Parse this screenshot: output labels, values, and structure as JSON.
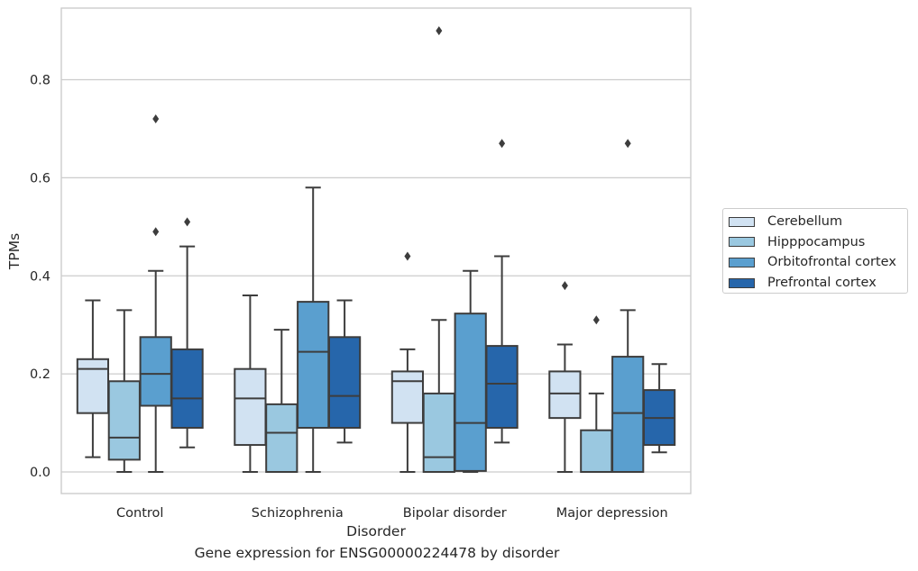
{
  "chart_data": {
    "type": "box",
    "title": "Gene expression for ENSG00000224478 by disorder",
    "xlabel": "Disorder",
    "ylabel": "TPMs",
    "ylim": [
      -0.045,
      0.945
    ],
    "yticks": [
      0.0,
      0.2,
      0.4,
      0.6,
      0.8
    ],
    "ytick_labels": [
      "0.0",
      "0.2",
      "0.4",
      "0.6",
      "0.8"
    ],
    "grid": "horizontal",
    "legend_position": "right",
    "categories": [
      "Control",
      "Schizophrenia",
      "Bipolar disorder",
      "Major depression"
    ],
    "series": [
      {
        "name": "Cerebellum",
        "color": "#d1e2f2",
        "boxes": [
          {
            "whislo": 0.03,
            "q1": 0.12,
            "med": 0.21,
            "q3": 0.23,
            "whishi": 0.35,
            "fliers": []
          },
          {
            "whislo": 0.0,
            "q1": 0.055,
            "med": 0.15,
            "q3": 0.21,
            "whishi": 0.36,
            "fliers": []
          },
          {
            "whislo": 0.0,
            "q1": 0.1,
            "med": 0.185,
            "q3": 0.205,
            "whishi": 0.25,
            "fliers": [
              0.44
            ]
          },
          {
            "whislo": 0.0,
            "q1": 0.11,
            "med": 0.16,
            "q3": 0.205,
            "whishi": 0.26,
            "fliers": [
              0.38
            ]
          }
        ]
      },
      {
        "name": "Hipppocampus",
        "color": "#9ac8e0",
        "boxes": [
          {
            "whislo": 0.0,
            "q1": 0.025,
            "med": 0.07,
            "q3": 0.185,
            "whishi": 0.33,
            "fliers": []
          },
          {
            "whislo": 0.0,
            "q1": 0.0,
            "med": 0.08,
            "q3": 0.138,
            "whishi": 0.29,
            "fliers": []
          },
          {
            "whislo": 0.0,
            "q1": 0.0,
            "med": 0.03,
            "q3": 0.16,
            "whishi": 0.31,
            "fliers": [
              0.9
            ]
          },
          {
            "whislo": 0.0,
            "q1": 0.0,
            "med": 0.0,
            "q3": 0.085,
            "whishi": 0.16,
            "fliers": [
              0.31
            ]
          }
        ]
      },
      {
        "name": "Orbitofrontal cortex",
        "color": "#5a9fcf",
        "boxes": [
          {
            "whislo": 0.0,
            "q1": 0.135,
            "med": 0.2,
            "q3": 0.275,
            "whishi": 0.41,
            "fliers": [
              0.49,
              0.72
            ]
          },
          {
            "whislo": 0.0,
            "q1": 0.09,
            "med": 0.245,
            "q3": 0.347,
            "whishi": 0.58,
            "fliers": []
          },
          {
            "whislo": 0.0,
            "q1": 0.002,
            "med": 0.1,
            "q3": 0.323,
            "whishi": 0.41,
            "fliers": []
          },
          {
            "whislo": 0.0,
            "q1": 0.0,
            "med": 0.12,
            "q3": 0.235,
            "whishi": 0.33,
            "fliers": [
              0.67
            ]
          }
        ]
      },
      {
        "name": "Prefrontal cortex",
        "color": "#2666ab",
        "boxes": [
          {
            "whislo": 0.05,
            "q1": 0.09,
            "med": 0.15,
            "q3": 0.25,
            "whishi": 0.46,
            "fliers": [
              0.51
            ]
          },
          {
            "whislo": 0.06,
            "q1": 0.09,
            "med": 0.155,
            "q3": 0.275,
            "whishi": 0.35,
            "fliers": []
          },
          {
            "whislo": 0.06,
            "q1": 0.09,
            "med": 0.18,
            "q3": 0.257,
            "whishi": 0.44,
            "fliers": [
              0.67
            ]
          },
          {
            "whislo": 0.04,
            "q1": 0.055,
            "med": 0.11,
            "q3": 0.167,
            "whishi": 0.22,
            "fliers": []
          }
        ]
      }
    ]
  }
}
